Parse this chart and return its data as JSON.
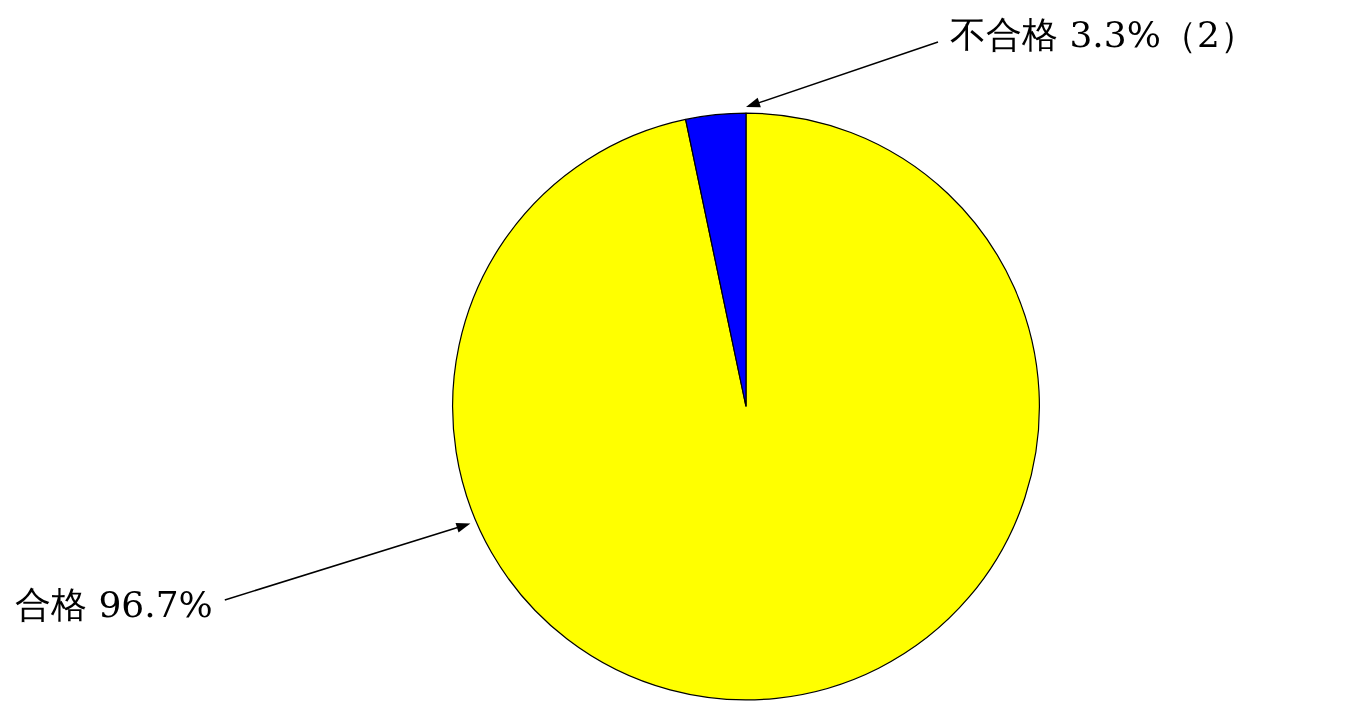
{
  "chart_data": {
    "type": "pie",
    "categories": [
      "合格",
      "不合格"
    ],
    "values": [
      96.7,
      3.3
    ],
    "colors": [
      "#ffff00",
      "#0000ff"
    ],
    "value_labels": [
      "96.7%",
      "3.3%（2）"
    ],
    "legend": false
  }
}
